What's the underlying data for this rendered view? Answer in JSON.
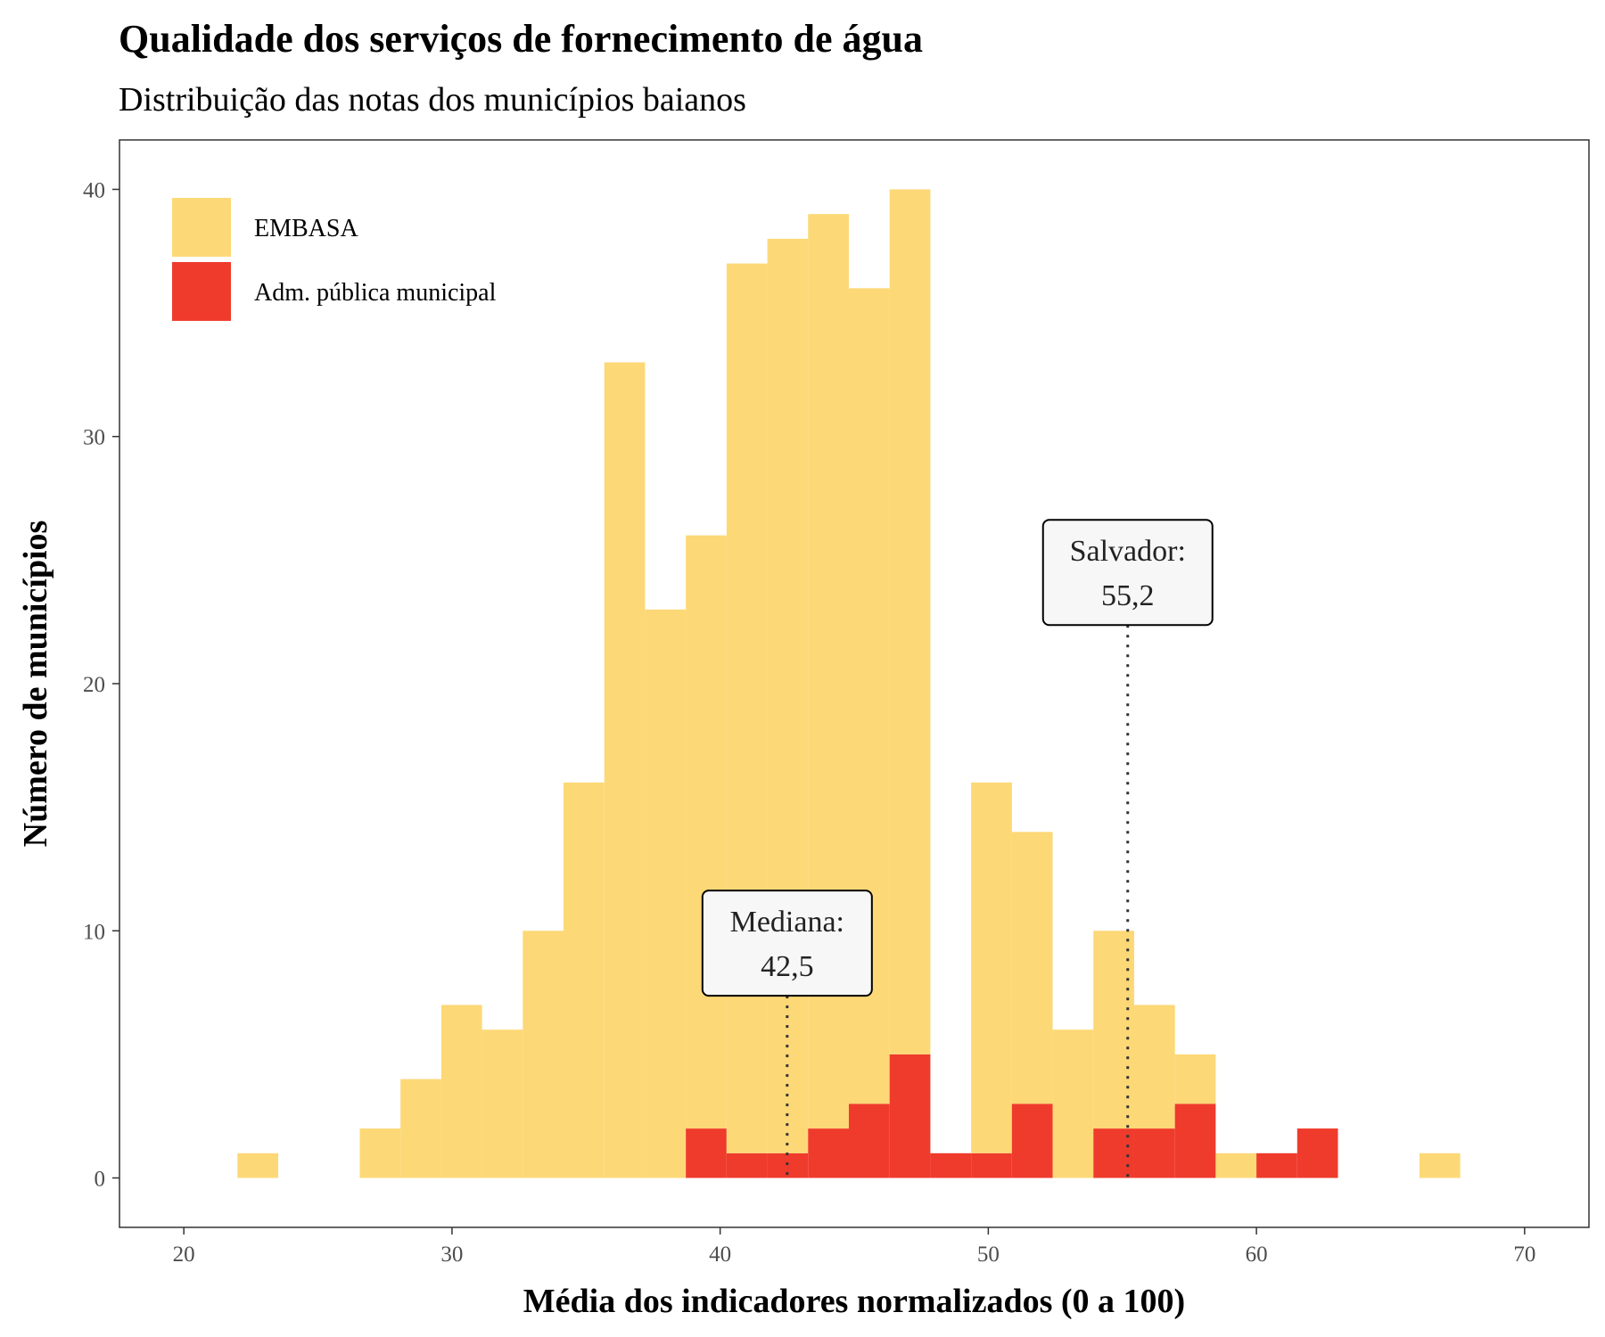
{
  "chart_data": {
    "type": "bar",
    "variant": "stacked-histogram",
    "title": "Qualidade dos serviços de fornecimento de água",
    "subtitle": "Distribuição das notas dos municípios baianos",
    "xlabel": "Média dos indicadores normalizados (0 a 100)",
    "ylabel": "Número de municípios",
    "xlim": [
      17.6,
      72.4
    ],
    "ylim": [
      -2,
      42
    ],
    "x_ticks": [
      20,
      30,
      40,
      50,
      60,
      70
    ],
    "y_ticks": [
      0,
      10,
      20,
      30,
      40
    ],
    "bin_edges": [
      22.0,
      23.52,
      25.04,
      26.56,
      28.08,
      29.6,
      31.12,
      32.64,
      34.16,
      35.68,
      37.2,
      38.72,
      40.24,
      41.76,
      43.28,
      44.8,
      46.32,
      47.84,
      49.36,
      50.88,
      52.4,
      53.92,
      55.44,
      56.96,
      58.48,
      60.0,
      61.52,
      63.04,
      64.56,
      66.08,
      67.6
    ],
    "series": [
      {
        "name": "EMBASA",
        "color": "#fdd876",
        "values": [
          1,
          0,
          0,
          2,
          4,
          7,
          6,
          10,
          16,
          33,
          23,
          24,
          36,
          37,
          37,
          33,
          35,
          0,
          15,
          11,
          6,
          8,
          5,
          2,
          1,
          0,
          0,
          0,
          0,
          1
        ]
      },
      {
        "name": "Adm. pública municipal",
        "color": "#ef3b2c",
        "values": [
          0,
          0,
          0,
          0,
          0,
          0,
          0,
          0,
          0,
          0,
          0,
          2,
          1,
          1,
          2,
          3,
          5,
          1,
          1,
          3,
          0,
          2,
          2,
          3,
          0,
          1,
          2,
          0,
          0,
          0
        ]
      }
    ],
    "annotations": [
      {
        "label": "Mediana:",
        "value_label": "42,5",
        "x": 42.5,
        "label_y": 9.5
      },
      {
        "label": "Salvador:",
        "value_label": "55,2",
        "x": 55.2,
        "label_y": 24.5
      }
    ],
    "legend_position": "top-left",
    "grid": false
  }
}
